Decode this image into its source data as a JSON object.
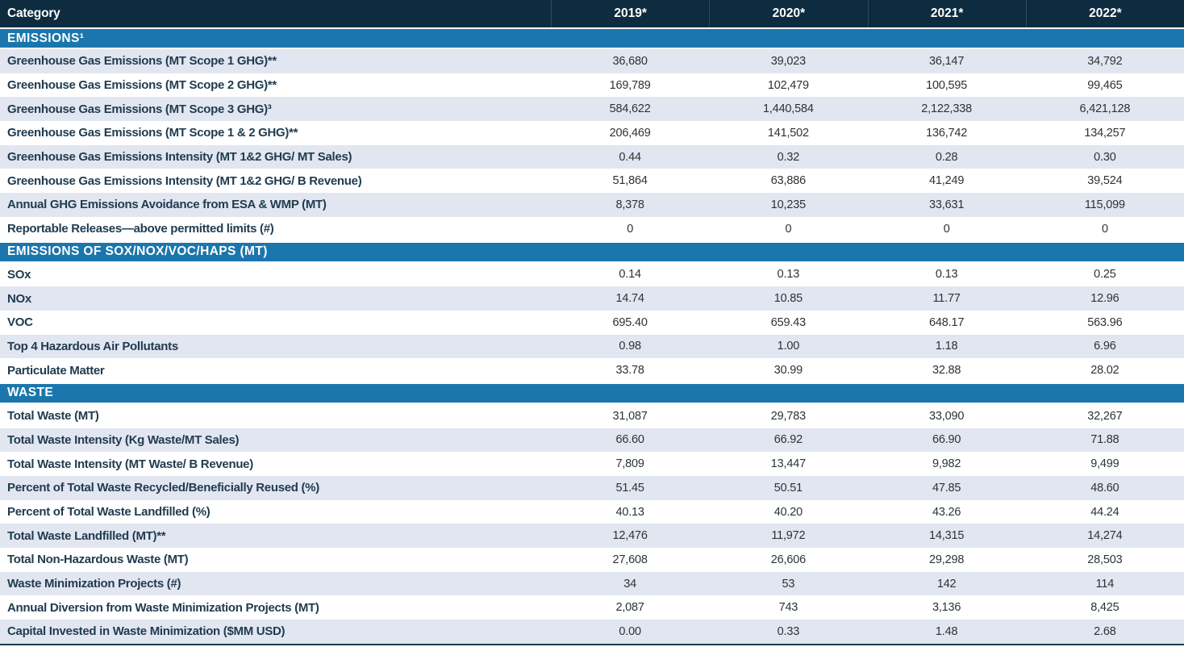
{
  "colors": {
    "header_bg": "#0e2c3f",
    "section_bg": "#1b76ad",
    "shaded_row_bg": "#e2e6f0",
    "label_text": "#203c50",
    "value_text": "#2e3236",
    "bottom_border": "#1c3a50"
  },
  "chart_data": {
    "type": "table",
    "title": "",
    "columns": [
      "Category",
      "2019*",
      "2020*",
      "2021*",
      "2022*"
    ],
    "layout": {
      "zebra_striping": true,
      "section_bands": 3,
      "value_alignment": "center"
    },
    "sections": [
      {
        "title": "EMISSIONS¹",
        "zebra_first_row_shaded": true,
        "rows": [
          {
            "label": "Greenhouse Gas Emissions (MT Scope 1 GHG)**",
            "values": [
              "36,680",
              "39,023",
              "36,147",
              "34,792"
            ]
          },
          {
            "label": "Greenhouse Gas Emissions (MT Scope 2 GHG)**",
            "values": [
              "169,789",
              "102,479",
              "100,595",
              "99,465"
            ]
          },
          {
            "label": "Greenhouse Gas Emissions (MT Scope 3 GHG)³",
            "values": [
              "584,622",
              "1,440,584",
              "2,122,338",
              "6,421,128"
            ]
          },
          {
            "label": "Greenhouse Gas Emissions (MT Scope 1 & 2 GHG)**",
            "values": [
              "206,469",
              "141,502",
              "136,742",
              "134,257"
            ]
          },
          {
            "label": "Greenhouse Gas Emissions Intensity (MT 1&2 GHG/ MT Sales)",
            "values": [
              "0.44",
              "0.32",
              "0.28",
              "0.30"
            ]
          },
          {
            "label": "Greenhouse Gas Emissions Intensity (MT 1&2 GHG/ B Revenue)",
            "values": [
              "51,864",
              "63,886",
              "41,249",
              "39,524"
            ]
          },
          {
            "label": "Annual GHG Emissions Avoidance from ESA & WMP (MT)",
            "values": [
              "8,378",
              "10,235",
              "33,631",
              "115,099"
            ]
          },
          {
            "label": "Reportable Releases—above permitted limits (#)",
            "values": [
              "0",
              "0",
              "0",
              "0"
            ]
          }
        ]
      },
      {
        "title": "EMISSIONS OF SOX/NOX/VOC/HAPS (MT)",
        "zebra_first_row_shaded": false,
        "rows": [
          {
            "label": "SOx",
            "values": [
              "0.14",
              "0.13",
              "0.13",
              "0.25"
            ]
          },
          {
            "label": "NOx",
            "values": [
              "14.74",
              "10.85",
              "11.77",
              "12.96"
            ]
          },
          {
            "label": "VOC",
            "values": [
              "695.40",
              "659.43",
              "648.17",
              "563.96"
            ]
          },
          {
            "label": "Top 4 Hazardous Air Pollutants",
            "values": [
              "0.98",
              "1.00",
              "1.18",
              "6.96"
            ]
          },
          {
            "label": "Particulate Matter",
            "values": [
              "33.78",
              "30.99",
              "32.88",
              "28.02"
            ]
          }
        ]
      },
      {
        "title": "WASTE",
        "zebra_first_row_shaded": false,
        "rows": [
          {
            "label": "Total Waste (MT)",
            "values": [
              "31,087",
              "29,783",
              "33,090",
              "32,267"
            ]
          },
          {
            "label": "Total Waste Intensity (Kg Waste/MT Sales)",
            "values": [
              "66.60",
              "66.92",
              "66.90",
              "71.88"
            ]
          },
          {
            "label": "Total Waste Intensity (MT Waste/ B Revenue)",
            "values": [
              "7,809",
              "13,447",
              "9,982",
              "9,499"
            ]
          },
          {
            "label": "Percent of Total Waste Recycled/Beneficially Reused (%)",
            "values": [
              "51.45",
              "50.51",
              "47.85",
              "48.60"
            ]
          },
          {
            "label": "Percent of Total Waste Landfilled (%)",
            "values": [
              "40.13",
              "40.20",
              "43.26",
              "44.24"
            ]
          },
          {
            "label": "Total Waste Landfilled (MT)**",
            "values": [
              "12,476",
              "11,972",
              "14,315",
              "14,274"
            ]
          },
          {
            "label": "Total Non-Hazardous Waste (MT)",
            "values": [
              "27,608",
              "26,606",
              "29,298",
              "28,503"
            ]
          },
          {
            "label": "Waste Minimization Projects (#)",
            "values": [
              "34",
              "53",
              "142",
              "114"
            ]
          },
          {
            "label": "Annual Diversion from Waste Minimization Projects (MT)",
            "values": [
              "2,087",
              "743",
              "3,136",
              "8,425"
            ]
          },
          {
            "label": "Capital Invested in Waste Minimization ($MM USD)",
            "values": [
              "0.00",
              "0.33",
              "1.48",
              "2.68"
            ]
          }
        ]
      }
    ]
  }
}
